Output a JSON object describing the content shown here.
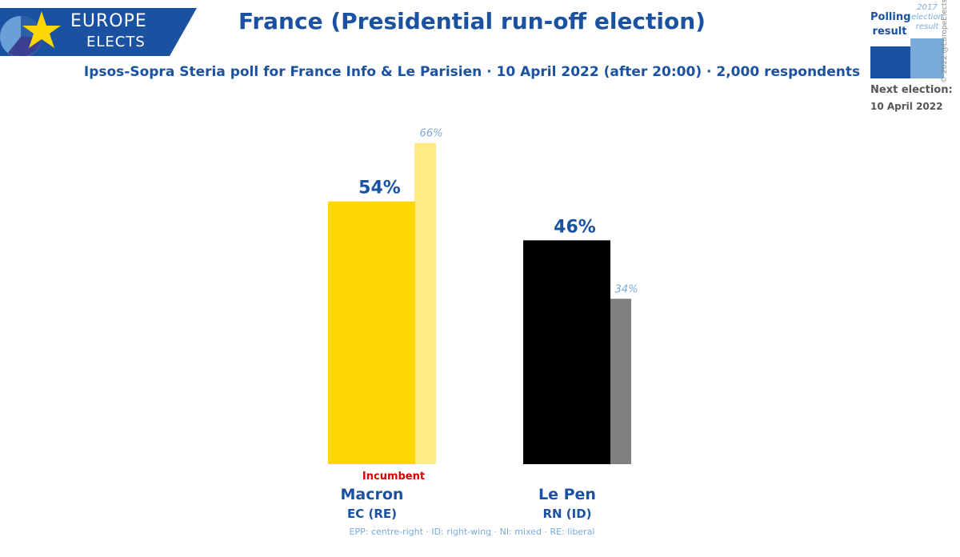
{
  "brand": {
    "line1": "EUROPE",
    "line2": "ELECTS"
  },
  "legend": {
    "current_label": "Polling result",
    "previous_label": "2017 election result",
    "next_label": "Next election:",
    "next_date": "10 April 2022",
    "current_color": "#1a52a1",
    "previous_color": "#7aaad8"
  },
  "copyright": "© 2022 @EuropeElects",
  "footnote": "EPP: centre-right · ID: right-wing · NI: mixed · RE: liberal",
  "chart_data": {
    "type": "bar",
    "title": "France (Presidential run-off election)",
    "subtitle": "Ipsos-Sopra Steria poll for France Info & Le Parisien · 10 April 2022 (after 20:00) · 2,000 respondents",
    "categories": [
      "Macron",
      "Le Pen"
    ],
    "parties": [
      "EC (RE)",
      "RN (ID)"
    ],
    "incumbent_label": "Incumbent",
    "incumbent_index": 0,
    "series": [
      {
        "name": "Polling result",
        "values": [
          54,
          46
        ],
        "colors": [
          "#ffd700",
          "#000000"
        ]
      },
      {
        "name": "2017 election result",
        "values": [
          66,
          34
        ],
        "colors": [
          "#ffeb85",
          "#808080"
        ]
      }
    ],
    "value_suffix": "%",
    "ylim": [
      0,
      75
    ],
    "grid": false,
    "legend_position": "top-right"
  }
}
